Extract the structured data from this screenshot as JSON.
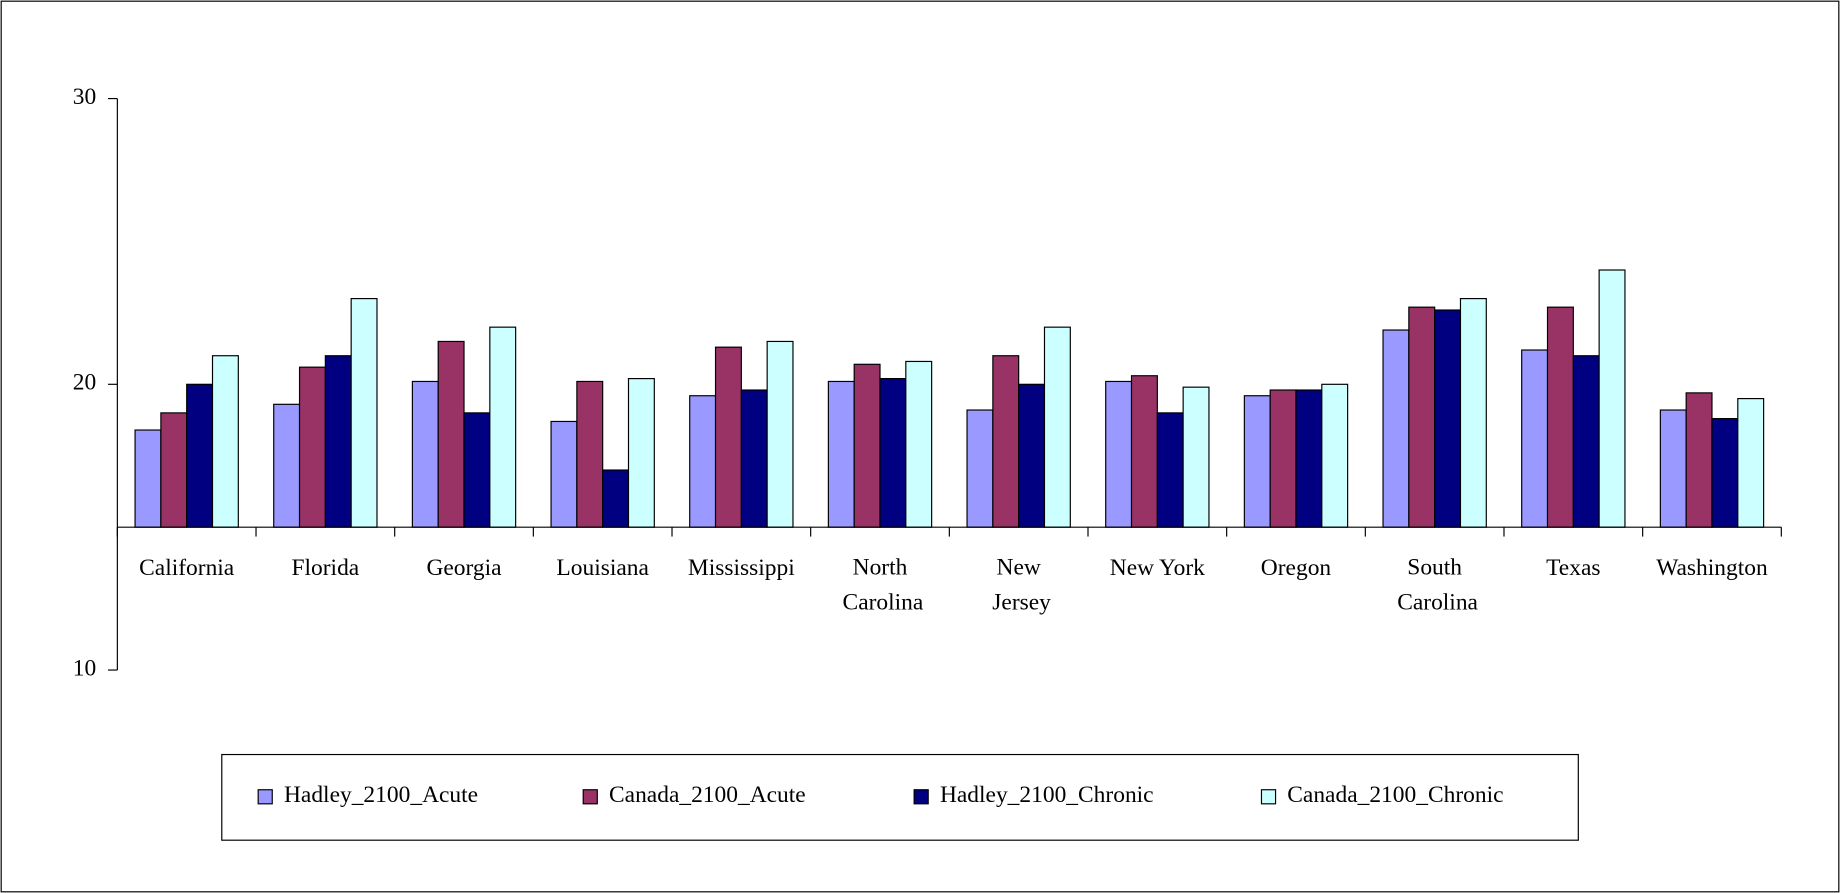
{
  "chart_data": {
    "type": "bar",
    "categories": [
      "California",
      "Florida",
      "Georgia",
      "Louisiana",
      "Mississippi",
      "North Carolina",
      "New Jersey",
      "New York",
      "Oregon",
      "South Carolina",
      "Texas",
      "Washington"
    ],
    "series": [
      {
        "name": "Hadley_2100_Acute",
        "color": "#9999ff",
        "values": [
          18.4,
          19.3,
          20.1,
          18.7,
          19.6,
          20.1,
          19.1,
          20.1,
          19.6,
          21.9,
          21.2,
          19.1
        ]
      },
      {
        "name": "Canada_2100_Acute",
        "color": "#993366",
        "values": [
          19.0,
          20.6,
          21.5,
          20.1,
          21.3,
          20.7,
          21.0,
          20.3,
          19.8,
          22.7,
          22.7,
          19.7
        ]
      },
      {
        "name": "Hadley_2100_Chronic",
        "color": "#000080",
        "values": [
          20.0,
          21.0,
          19.0,
          17.0,
          19.8,
          20.2,
          20.0,
          19.0,
          19.8,
          22.6,
          21.0,
          18.8
        ]
      },
      {
        "name": "Canada_2100_Chronic",
        "color": "#ccffff",
        "values": [
          21.0,
          23.0,
          22.0,
          20.2,
          21.5,
          20.8,
          22.0,
          19.9,
          20.0,
          23.0,
          24.0,
          19.5
        ]
      }
    ],
    "ylim": [
      10,
      30
    ],
    "yticks": [
      10,
      20,
      30
    ],
    "x_axis_crosses": 15,
    "legend": "bottom"
  }
}
